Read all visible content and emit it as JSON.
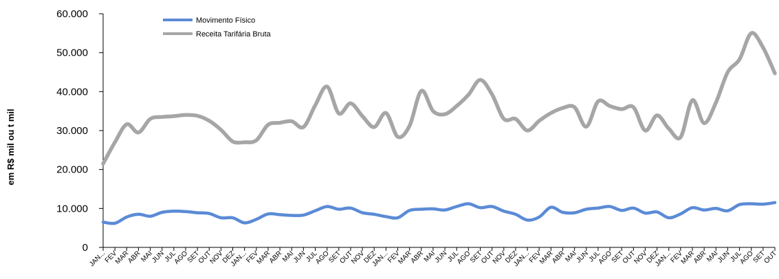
{
  "chart_data": {
    "type": "line",
    "title": "",
    "xlabel": "",
    "ylabel": "em R$ mil ou t mil",
    "ylim": [
      0,
      60000
    ],
    "yticks": [
      0,
      10000,
      20000,
      30000,
      40000,
      50000,
      60000
    ],
    "ytick_labels": [
      "0",
      "10.000",
      "20.000",
      "30.000",
      "40.000",
      "50.000",
      "60.000"
    ],
    "grid": false,
    "legend_position": "top-left",
    "x": [
      "JAN...",
      "FEV",
      "MAR",
      "ABR",
      "MAI",
      "JUN",
      "JUL",
      "AGO",
      "SET",
      "OUT",
      "NOV",
      "DEZ",
      "JAN...",
      "FEV",
      "MAR",
      "ABR",
      "MAI",
      "JUN",
      "JUL",
      "AGO",
      "SET",
      "OUT",
      "NOV",
      "DEZ",
      "JAN...",
      "FEV",
      "MAR",
      "ABR",
      "MAI",
      "JUN",
      "JUL",
      "AGO",
      "SET",
      "OUT",
      "NOV",
      "DEZ",
      "JAN...",
      "FEV",
      "MAR",
      "ABR",
      "MAI",
      "JUN",
      "JUL",
      "AGO",
      "SET",
      "OUT",
      "NOV",
      "DEZ",
      "JAN...",
      "FEV",
      "MAR",
      "ABR",
      "MAI",
      "JUN",
      "JUL",
      "AGO",
      "SET",
      "OUT"
    ],
    "series": [
      {
        "name": "Movimento Físico",
        "color": "#5b8bd6",
        "values": [
          6500,
          6200,
          7800,
          8500,
          8000,
          9000,
          9300,
          9200,
          8900,
          8700,
          7600,
          7600,
          6300,
          7200,
          8600,
          8400,
          8200,
          8300,
          9400,
          10500,
          9800,
          10100,
          8900,
          8500,
          7900,
          7600,
          9500,
          9800,
          9900,
          9600,
          10500,
          11200,
          10200,
          10500,
          9300,
          8500,
          7000,
          7800,
          10300,
          9000,
          8900,
          9800,
          10100,
          10500,
          9500,
          10100,
          8800,
          9100,
          7600,
          8600,
          10200,
          9600,
          10000,
          9400,
          11000,
          11200,
          11100,
          11500
        ]
      },
      {
        "name": "Receita Tarifária Bruta",
        "color": "#a6a6a6",
        "values": [
          21500,
          27000,
          31600,
          29500,
          33000,
          33500,
          33700,
          34000,
          33800,
          32500,
          30200,
          27200,
          27000,
          27500,
          31500,
          32000,
          32400,
          30900,
          36500,
          41300,
          34400,
          37000,
          33700,
          30900,
          34500,
          28400,
          31200,
          40200,
          35000,
          34200,
          36300,
          39200,
          43000,
          39300,
          33000,
          33000,
          30000,
          32500,
          34500,
          35800,
          36000,
          31000,
          37500,
          36300,
          35500,
          36000,
          30000,
          33900,
          30500,
          28300,
          37800,
          31900,
          37200,
          45000,
          48300,
          55000,
          51300,
          44700
        ]
      }
    ]
  }
}
